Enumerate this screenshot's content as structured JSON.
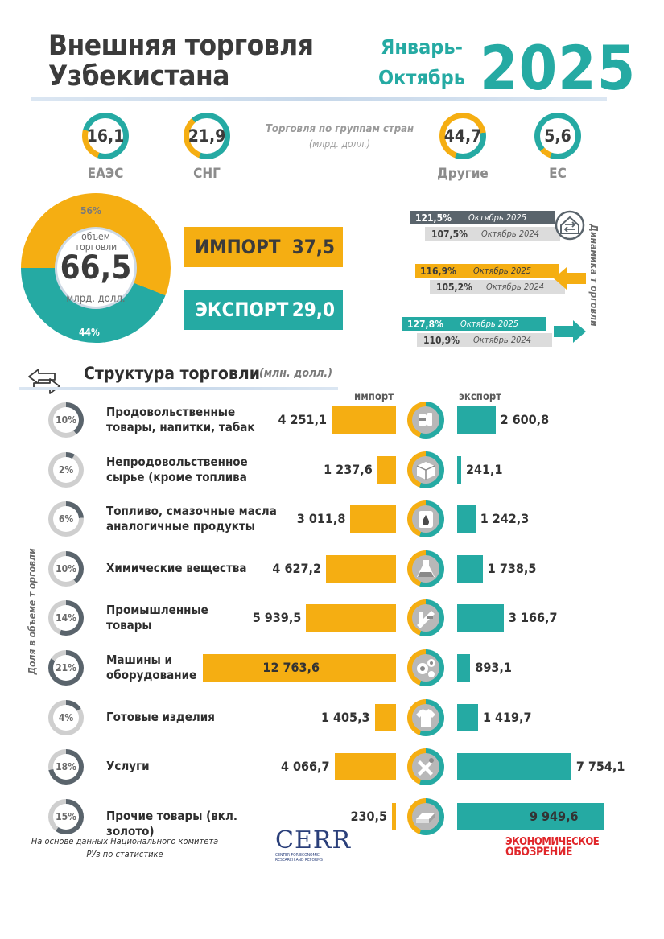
{
  "header": {
    "title_line1": "Внешняя торговля",
    "title_line2": "Узбекистана",
    "period_line1": "Январь-",
    "period_line2": "Октябрь",
    "year": "2025"
  },
  "country_groups": {
    "title": "Торговля по группам стран",
    "unit": "(млрд. долл.)",
    "items": [
      {
        "label": "ЕАЭС",
        "value": "16,1",
        "share": 0.24
      },
      {
        "label": "СНГ",
        "value": "21,9",
        "share": 0.33
      },
      {
        "label": "Другие",
        "value": "44,7",
        "share": 0.67
      },
      {
        "label": "ЕС",
        "value": "5,6",
        "share": 0.08
      }
    ]
  },
  "volume": {
    "caption_line1": "объем",
    "caption_line2": "торговли",
    "value": "66,5",
    "unit": "млрд. долл.",
    "import_share_label": "56%",
    "export_share_label": "44%",
    "import_share": 56,
    "export_share": 44,
    "import_label": "ИМПОРТ",
    "import_value": "37,5",
    "export_label": "ЭКСПОРТ",
    "export_value": "29,0"
  },
  "dynamics": {
    "side_title": "Динамика т орговли",
    "groups": [
      {
        "kind": "total",
        "current_value": "121,5%",
        "current_period": "Октябрь 2025",
        "previous_value": "107,5%",
        "previous_period": "Октябрь 2024"
      },
      {
        "kind": "import",
        "current_value": "116,9%",
        "current_period": "Октябрь 2025",
        "previous_value": "105,2%",
        "previous_period": "Октябрь 2024"
      },
      {
        "kind": "export",
        "current_value": "127,8%",
        "current_period": "Октябрь 2025",
        "previous_value": "110,9%",
        "previous_period": "Октябрь 2024"
      }
    ]
  },
  "structure": {
    "title": "Структура торговли",
    "unit": "(млн. долл.)",
    "import_header": "импорт",
    "export_header": "экспорт",
    "share_axis_label": "Доля в объеме т орговли"
  },
  "chart_data": {
    "type": "bar",
    "categories": [
      "Продовольственные товары, напитки, табак",
      "Непродовольственное сырье (кроме топлива",
      "Топливо, смазочные масла аналогичные продукты",
      "Химические вещества",
      "Промышленные товары",
      "Машины и оборудование",
      "Готовые изделия",
      "Услуги",
      "Прочие товары (вкл. золото)"
    ],
    "series": [
      {
        "name": "импорт",
        "values": [
          4251.1,
          1237.6,
          3011.8,
          4627.2,
          5939.5,
          12763.6,
          1405.3,
          4066.7,
          230.5
        ]
      },
      {
        "name": "экспорт",
        "values": [
          2600.8,
          241.1,
          1242.3,
          1738.5,
          3166.7,
          893.1,
          1419.7,
          7754.1,
          9949.6
        ]
      }
    ],
    "shares": [
      10,
      2,
      6,
      10,
      14,
      21,
      4,
      18,
      15
    ],
    "rows": [
      {
        "line1": "Продовольственные",
        "line2": "товары, напитки, табак",
        "share_label": "10%",
        "import_label": "4 251,1",
        "export_label": "2 600,8",
        "icon": "food-icon"
      },
      {
        "line1": "Непродовольственное",
        "line2": "сырье (кроме топлива",
        "share_label": "2%",
        "import_label": "1 237,6",
        "export_label": "241,1",
        "icon": "box-icon"
      },
      {
        "line1": "Топливо, смазочные масла",
        "line2": "аналогичные продукты",
        "share_label": "6%",
        "import_label": "3 011,8",
        "export_label": "1 242,3",
        "icon": "oil-barrel-icon"
      },
      {
        "line1": "Химические вещества",
        "line2": "",
        "share_label": "10%",
        "import_label": "4 627,2",
        "export_label": "1 738,5",
        "icon": "flask-icon"
      },
      {
        "line1": "Промышленные",
        "line2": "товары",
        "share_label": "14%",
        "import_label": "5 939,5",
        "export_label": "3 166,7",
        "icon": "steel-beam-icon"
      },
      {
        "line1": "Машины и",
        "line2": "оборудование",
        "share_label": "21%",
        "import_label": "12 763,6",
        "export_label": "893,1",
        "icon": "gears-icon"
      },
      {
        "line1": "Готовые изделия",
        "line2": "",
        "share_label": "4%",
        "import_label": "1 405,3",
        "export_label": "1 419,7",
        "icon": "tshirt-icon"
      },
      {
        "line1": "Услуги",
        "line2": "",
        "share_label": "18%",
        "import_label": "4 066,7",
        "export_label": "7 754,1",
        "icon": "tools-icon"
      },
      {
        "line1": "Прочие товары (вкл. золото)",
        "line2": "",
        "share_label": "15%",
        "import_label": "230,5",
        "export_label": "9 949,6",
        "icon": "gold-bars-icon"
      }
    ]
  },
  "colors": {
    "import": "#f5ae12",
    "export": "#25aaa3",
    "dark": "#5a646c",
    "grey": "#c4c4c4"
  },
  "footer": {
    "source_line1": "На основе данных Национального комитета",
    "source_line2": "РУз по статистике",
    "cerr_logo": "CERR",
    "cerr_sub_line1": "CENTER FOR ECONOMIC",
    "cerr_sub_line2": "RESEARCH AND REFORMS",
    "eo_line1": "ЭКОНОМИЧЕСКОЕ",
    "eo_line2": "ОБОЗРЕНИЕ"
  }
}
